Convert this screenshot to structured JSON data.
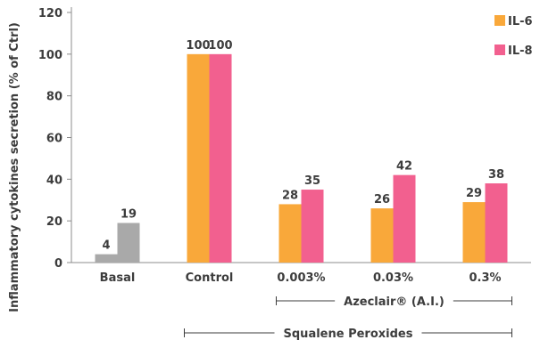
{
  "chart_data": {
    "type": "bar",
    "categories": [
      "Basal",
      "Control",
      "0.003%",
      "0.03%",
      "0.3%"
    ],
    "series": [
      {
        "name": "IL-6",
        "color": "#F9A83A",
        "values": [
          4,
          100,
          28,
          26,
          29
        ],
        "basal_color": "#A9A9A9"
      },
      {
        "name": "IL-8",
        "color": "#F2608F",
        "values": [
          19,
          100,
          35,
          42,
          38
        ],
        "basal_color": "#A9A9A9"
      }
    ],
    "ylabel": "Inflammatory cytokines secretion (% of Ctrl)",
    "ylim": [
      0,
      120
    ],
    "yticks": [
      0,
      20,
      40,
      60,
      80,
      100,
      120
    ],
    "data_labels": [
      [
        "4",
        "100",
        "28",
        "26",
        "29"
      ],
      [
        "19",
        "100",
        "35",
        "42",
        "38"
      ]
    ],
    "legend_position": "top-right",
    "grid": false,
    "brackets": [
      {
        "label": "Azeclair® (A.I.)",
        "categories": [
          "0.003%",
          "0.3%"
        ]
      },
      {
        "label": "Squalene Peroxides",
        "categories": [
          "Control",
          "0.3%"
        ]
      }
    ]
  }
}
